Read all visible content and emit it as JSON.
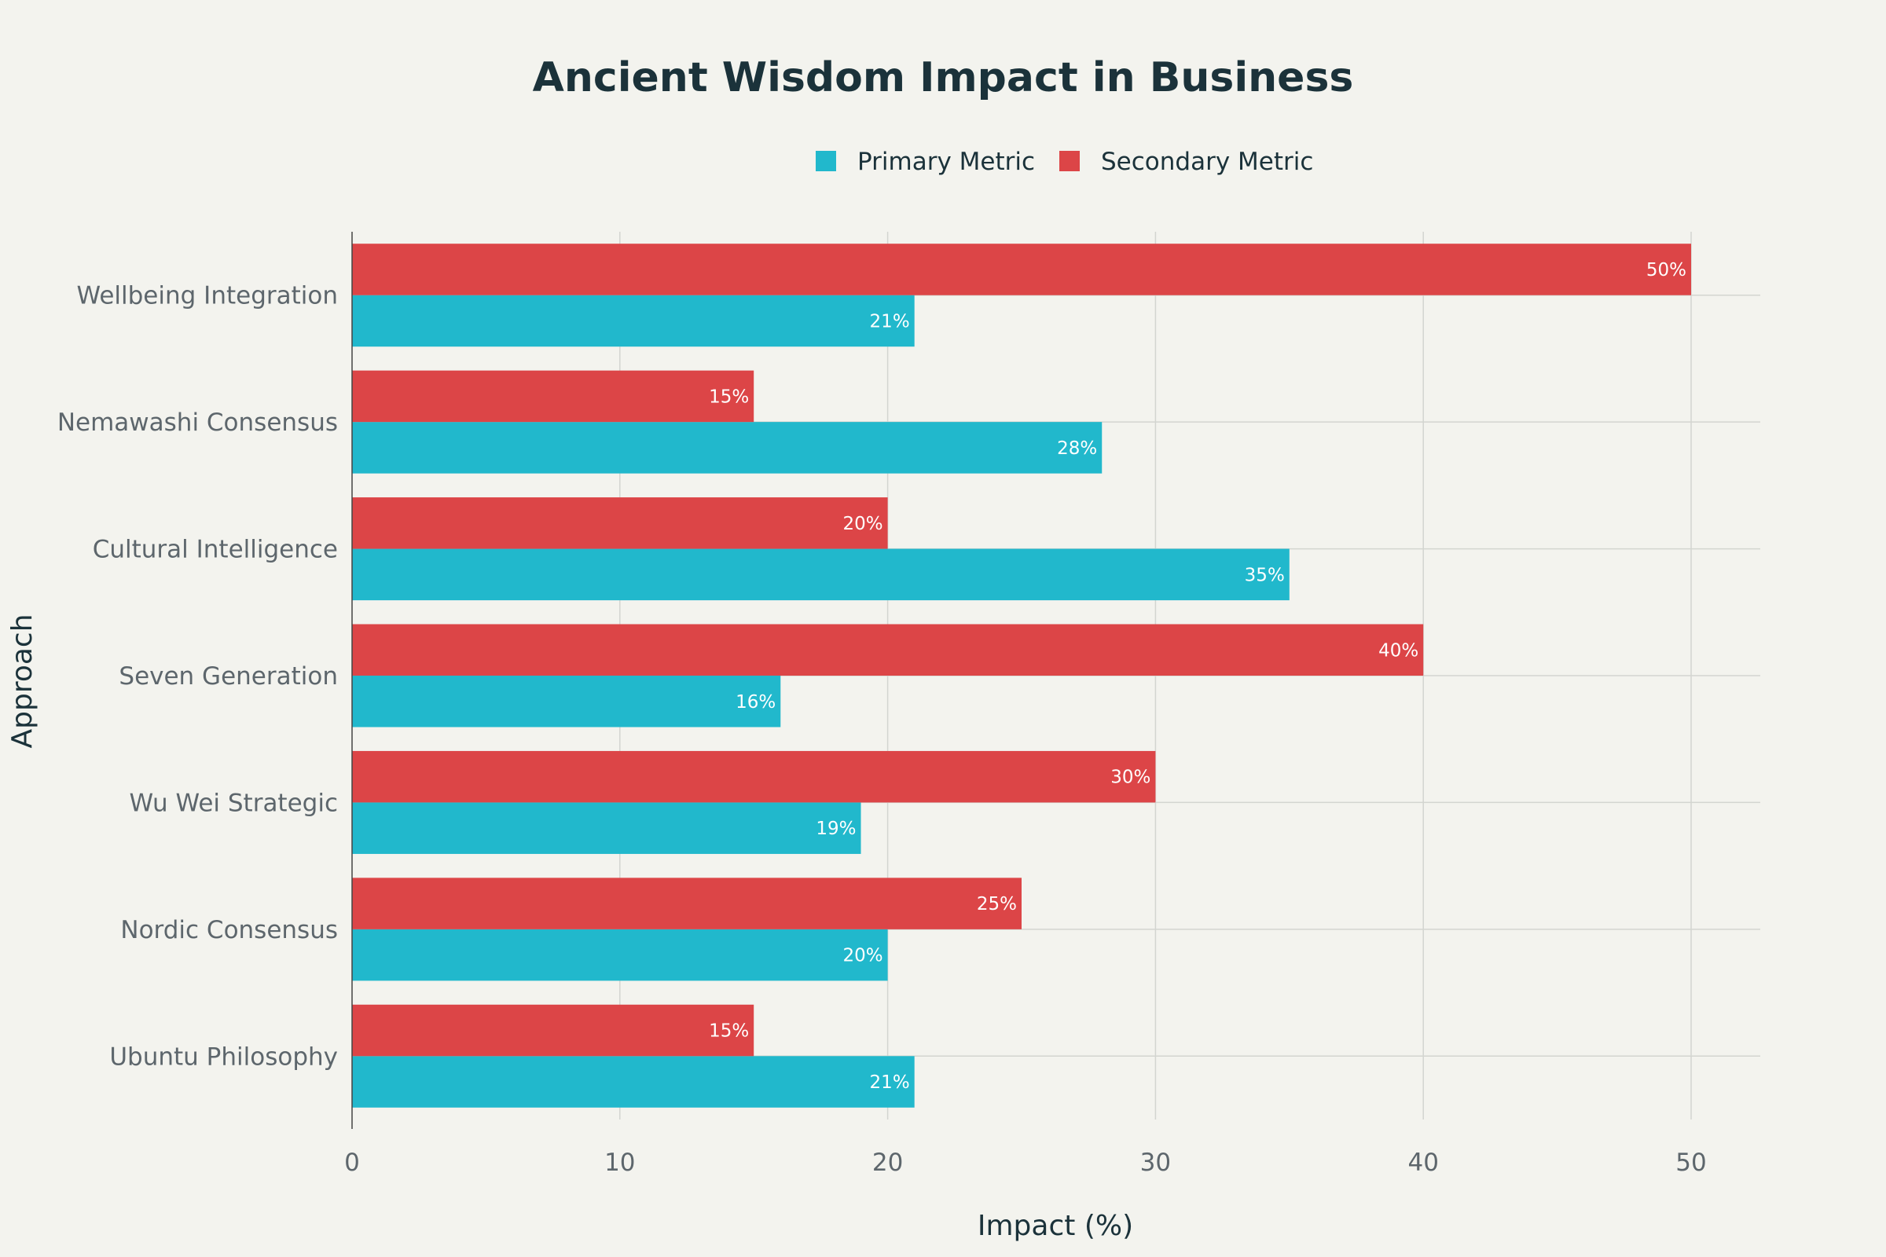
{
  "chart_data": {
    "type": "bar",
    "orientation": "horizontal",
    "title": "Ancient Wisdom Impact in Business",
    "xlabel": "Impact (%)",
    "ylabel": "Approach",
    "xlim": [
      0,
      52.6
    ],
    "xticks": [
      0,
      10,
      20,
      30,
      40,
      50
    ],
    "grid": true,
    "legend_position": "top-center",
    "value_suffix": "%",
    "categories": [
      "Ubuntu Philosophy",
      "Nordic Consensus",
      "Wu Wei Strategic",
      "Seven Generation",
      "Cultural Intelligence",
      "Nemawashi Consensus",
      "Wellbeing Integration"
    ],
    "series": [
      {
        "name": "Primary Metric",
        "color": "#21b8cc",
        "values": [
          21,
          20,
          19,
          16,
          35,
          28,
          21
        ]
      },
      {
        "name": "Secondary Metric",
        "color": "#dc4547",
        "values": [
          15,
          25,
          30,
          40,
          20,
          15,
          50
        ]
      }
    ]
  }
}
